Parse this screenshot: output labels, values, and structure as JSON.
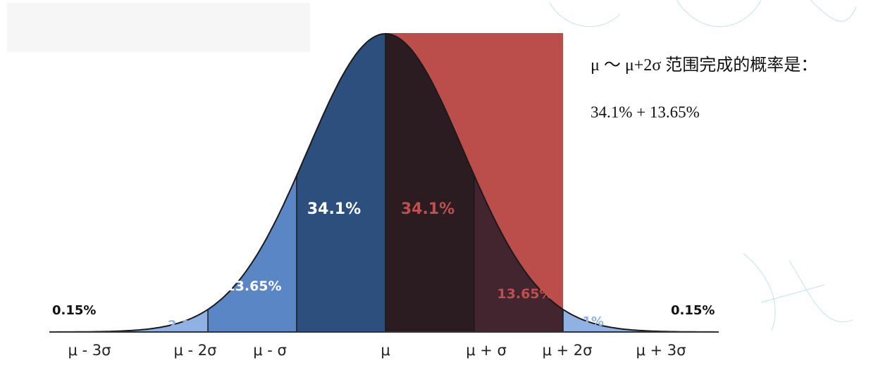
{
  "chart_data": {
    "type": "area",
    "title": "",
    "xlabel": "",
    "ylabel": "",
    "x_ticks": [
      "μ - 3σ",
      "μ - 2σ",
      "μ - σ",
      "μ",
      "μ + σ",
      "μ + 2σ",
      "μ + 3σ"
    ],
    "segments": [
      {
        "from": "-inf",
        "to": -3,
        "label": "0.15%",
        "color": "#111111"
      },
      {
        "from": -3,
        "to": -2,
        "label": "2.1%",
        "color": "#8fb1e3"
      },
      {
        "from": -2,
        "to": -1,
        "label": "13.65%",
        "color": "#5b86c6"
      },
      {
        "from": -1,
        "to": 0,
        "label": "34.1%",
        "color": "#2d4f7e"
      },
      {
        "from": 0,
        "to": 1,
        "label": "34.1%",
        "color": "#2b1c22"
      },
      {
        "from": 1,
        "to": 2,
        "label": "13.65%",
        "color": "#432530"
      },
      {
        "from": 2,
        "to": 3,
        "label": "2.1%",
        "color": "#8fb1e3"
      },
      {
        "from": 3,
        "to": "inf",
        "label": "0.15%",
        "color": "#111111"
      }
    ],
    "highlight": {
      "from": 0,
      "to": 2,
      "color": "#bb4d4b"
    },
    "colors": {
      "curve": "#1a1a1a",
      "axis": "#333333",
      "red_text": "#c0504d",
      "white_text": "#ffffff"
    }
  },
  "annotation": {
    "title": "μ ～ μ+2σ 范围完成的概率是：",
    "formula": "34.1% + 13.65%"
  }
}
